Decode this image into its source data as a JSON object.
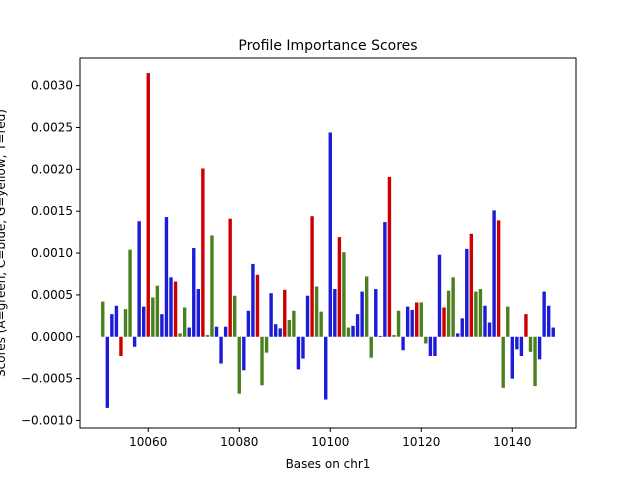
{
  "chart_data": {
    "type": "bar",
    "title": "Profile Importance Scores",
    "xlabel": "Bases on chr1",
    "ylabel": "Scores (A=green, C=blue, G=yellow, T=red)",
    "xlim": [
      10045,
      10154
    ],
    "ylim": [
      -0.00109,
      0.00333
    ],
    "xticks": [
      10060,
      10080,
      10100,
      10120,
      10140
    ],
    "yticks": [
      -0.001,
      -0.0005,
      0.0,
      0.0005,
      0.001,
      0.0015,
      0.002,
      0.0025,
      0.003
    ],
    "ytick_labels": [
      "−0.0010",
      "−0.0005",
      "0.0000",
      "0.0005",
      "0.0010",
      "0.0015",
      "0.0020",
      "0.0025",
      "0.0030"
    ],
    "grid": false,
    "colors": {
      "A": "#4c7f1e",
      "C": "#1c1cd6",
      "G": "#f0a800",
      "T": "#cc0000"
    },
    "bars": [
      {
        "x": 10050,
        "base": "A",
        "value": 0.00042
      },
      {
        "x": 10051,
        "base": "C",
        "value": -0.00085
      },
      {
        "x": 10052,
        "base": "C",
        "value": 0.00027
      },
      {
        "x": 10053,
        "base": "C",
        "value": 0.00037
      },
      {
        "x": 10054,
        "base": "T",
        "value": -0.00023
      },
      {
        "x": 10055,
        "base": "A",
        "value": 0.00033
      },
      {
        "x": 10056,
        "base": "A",
        "value": 0.00104
      },
      {
        "x": 10057,
        "base": "C",
        "value": -0.00012
      },
      {
        "x": 10058,
        "base": "C",
        "value": 0.00138
      },
      {
        "x": 10059,
        "base": "C",
        "value": 0.00036
      },
      {
        "x": 10060,
        "base": "T",
        "value": 0.00315
      },
      {
        "x": 10061,
        "base": "A",
        "value": 0.00047
      },
      {
        "x": 10062,
        "base": "A",
        "value": 0.00061
      },
      {
        "x": 10063,
        "base": "C",
        "value": 0.00027
      },
      {
        "x": 10064,
        "base": "C",
        "value": 0.00143
      },
      {
        "x": 10065,
        "base": "C",
        "value": 0.00071
      },
      {
        "x": 10066,
        "base": "T",
        "value": 0.00066
      },
      {
        "x": 10067,
        "base": "A",
        "value": 4e-05
      },
      {
        "x": 10068,
        "base": "A",
        "value": 0.00035
      },
      {
        "x": 10069,
        "base": "C",
        "value": 0.00011
      },
      {
        "x": 10070,
        "base": "C",
        "value": 0.00106
      },
      {
        "x": 10071,
        "base": "C",
        "value": 0.00057
      },
      {
        "x": 10072,
        "base": "T",
        "value": 0.00201
      },
      {
        "x": 10073,
        "base": "A",
        "value": 2e-05
      },
      {
        "x": 10074,
        "base": "A",
        "value": 0.00121
      },
      {
        "x": 10075,
        "base": "C",
        "value": 0.00012
      },
      {
        "x": 10076,
        "base": "C",
        "value": -0.00032
      },
      {
        "x": 10077,
        "base": "C",
        "value": 0.00012
      },
      {
        "x": 10078,
        "base": "T",
        "value": 0.00141
      },
      {
        "x": 10079,
        "base": "A",
        "value": 0.00049
      },
      {
        "x": 10080,
        "base": "A",
        "value": -0.00068
      },
      {
        "x": 10081,
        "base": "C",
        "value": -0.0004
      },
      {
        "x": 10082,
        "base": "C",
        "value": 0.00031
      },
      {
        "x": 10083,
        "base": "C",
        "value": 0.00087
      },
      {
        "x": 10084,
        "base": "T",
        "value": 0.00074
      },
      {
        "x": 10085,
        "base": "A",
        "value": -0.00058
      },
      {
        "x": 10086,
        "base": "A",
        "value": -0.00019
      },
      {
        "x": 10087,
        "base": "C",
        "value": 0.00052
      },
      {
        "x": 10088,
        "base": "C",
        "value": 0.00015
      },
      {
        "x": 10089,
        "base": "C",
        "value": 0.0001
      },
      {
        "x": 10090,
        "base": "T",
        "value": 0.00056
      },
      {
        "x": 10091,
        "base": "A",
        "value": 0.0002
      },
      {
        "x": 10092,
        "base": "A",
        "value": 0.00031
      },
      {
        "x": 10093,
        "base": "C",
        "value": -0.00039
      },
      {
        "x": 10094,
        "base": "C",
        "value": -0.00026
      },
      {
        "x": 10095,
        "base": "C",
        "value": 0.00049
      },
      {
        "x": 10096,
        "base": "T",
        "value": 0.00144
      },
      {
        "x": 10097,
        "base": "A",
        "value": 0.0006
      },
      {
        "x": 10098,
        "base": "A",
        "value": 0.0003
      },
      {
        "x": 10099,
        "base": "C",
        "value": -0.00075
      },
      {
        "x": 10100,
        "base": "C",
        "value": 0.00244
      },
      {
        "x": 10101,
        "base": "C",
        "value": 0.00057
      },
      {
        "x": 10102,
        "base": "T",
        "value": 0.00119
      },
      {
        "x": 10103,
        "base": "A",
        "value": 0.00101
      },
      {
        "x": 10104,
        "base": "A",
        "value": 0.00011
      },
      {
        "x": 10105,
        "base": "C",
        "value": 0.00013
      },
      {
        "x": 10106,
        "base": "C",
        "value": 0.00027
      },
      {
        "x": 10107,
        "base": "C",
        "value": 0.00054
      },
      {
        "x": 10108,
        "base": "A",
        "value": 0.00072
      },
      {
        "x": 10109,
        "base": "A",
        "value": -0.00025
      },
      {
        "x": 10110,
        "base": "C",
        "value": 0.00057
      },
      {
        "x": 10111,
        "base": "C",
        "value": 1e-05
      },
      {
        "x": 10112,
        "base": "C",
        "value": 0.00137
      },
      {
        "x": 10113,
        "base": "T",
        "value": 0.00191
      },
      {
        "x": 10114,
        "base": "A",
        "value": 2e-05
      },
      {
        "x": 10115,
        "base": "A",
        "value": 0.00031
      },
      {
        "x": 10116,
        "base": "C",
        "value": -0.00016
      },
      {
        "x": 10117,
        "base": "C",
        "value": 0.00036
      },
      {
        "x": 10118,
        "base": "C",
        "value": 0.00032
      },
      {
        "x": 10119,
        "base": "T",
        "value": 0.00041
      },
      {
        "x": 10120,
        "base": "A",
        "value": 0.00041
      },
      {
        "x": 10121,
        "base": "A",
        "value": -8e-05
      },
      {
        "x": 10122,
        "base": "C",
        "value": -0.00023
      },
      {
        "x": 10123,
        "base": "C",
        "value": -0.00023
      },
      {
        "x": 10124,
        "base": "C",
        "value": 0.00098
      },
      {
        "x": 10125,
        "base": "T",
        "value": 0.00035
      },
      {
        "x": 10126,
        "base": "A",
        "value": 0.00055
      },
      {
        "x": 10127,
        "base": "A",
        "value": 0.00071
      },
      {
        "x": 10128,
        "base": "C",
        "value": 4e-05
      },
      {
        "x": 10129,
        "base": "C",
        "value": 0.00022
      },
      {
        "x": 10130,
        "base": "C",
        "value": 0.00105
      },
      {
        "x": 10131,
        "base": "T",
        "value": 0.00123
      },
      {
        "x": 10132,
        "base": "A",
        "value": 0.00054
      },
      {
        "x": 10133,
        "base": "A",
        "value": 0.00057
      },
      {
        "x": 10134,
        "base": "C",
        "value": 0.00037
      },
      {
        "x": 10135,
        "base": "C",
        "value": 0.00017
      },
      {
        "x": 10136,
        "base": "C",
        "value": 0.00151
      },
      {
        "x": 10137,
        "base": "T",
        "value": 0.00139
      },
      {
        "x": 10138,
        "base": "A",
        "value": -0.00061
      },
      {
        "x": 10139,
        "base": "A",
        "value": 0.00036
      },
      {
        "x": 10140,
        "base": "C",
        "value": -0.0005
      },
      {
        "x": 10141,
        "base": "C",
        "value": -0.00015
      },
      {
        "x": 10142,
        "base": "C",
        "value": -0.00023
      },
      {
        "x": 10143,
        "base": "T",
        "value": 0.00027
      },
      {
        "x": 10144,
        "base": "A",
        "value": -0.00018
      },
      {
        "x": 10145,
        "base": "A",
        "value": -0.00059
      },
      {
        "x": 10146,
        "base": "C",
        "value": -0.00027
      },
      {
        "x": 10147,
        "base": "C",
        "value": 0.00054
      },
      {
        "x": 10148,
        "base": "C",
        "value": 0.00037
      },
      {
        "x": 10149,
        "base": "C",
        "value": 0.00011
      }
    ]
  }
}
